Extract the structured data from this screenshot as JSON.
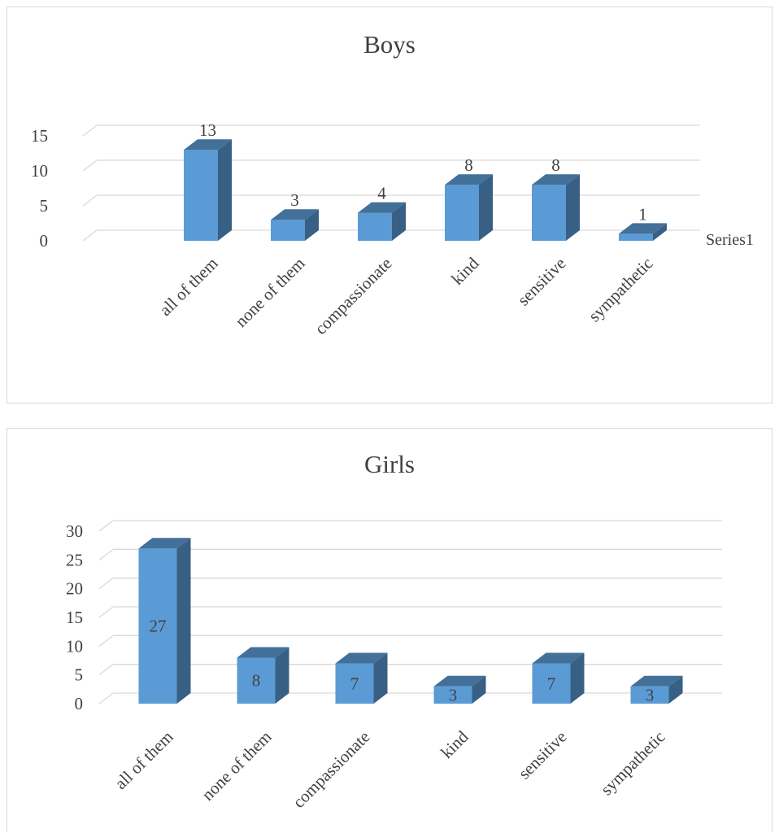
{
  "chart_data": [
    {
      "type": "bar",
      "title": "Boys",
      "categories": [
        "all of them",
        "none of them",
        "compassionate",
        "kind",
        "sensitive",
        "sympathetic"
      ],
      "series": [
        {
          "name": "Series1",
          "values": [
            13,
            3,
            4,
            8,
            8,
            1
          ]
        }
      ],
      "y_ticks": [
        "0",
        "5",
        "10",
        "15"
      ],
      "ylim": [
        0,
        15
      ],
      "grid": true,
      "legend": "right",
      "data_labels": "above",
      "style": "3d-column",
      "bar_color": "#5b9bd5"
    },
    {
      "type": "bar",
      "title": "Girls",
      "categories": [
        "all of them",
        "none of them",
        "compassionate",
        "kind",
        "sensitive",
        "sympathetic"
      ],
      "series": [
        {
          "values": [
            27,
            8,
            7,
            3,
            7,
            3
          ]
        }
      ],
      "y_ticks": [
        "0",
        "5",
        "10",
        "15",
        "20",
        "25",
        "30"
      ],
      "ylim": [
        0,
        30
      ],
      "grid": true,
      "data_labels": "inside",
      "style": "3d-column",
      "bar_color": "#5b9bd5"
    }
  ]
}
